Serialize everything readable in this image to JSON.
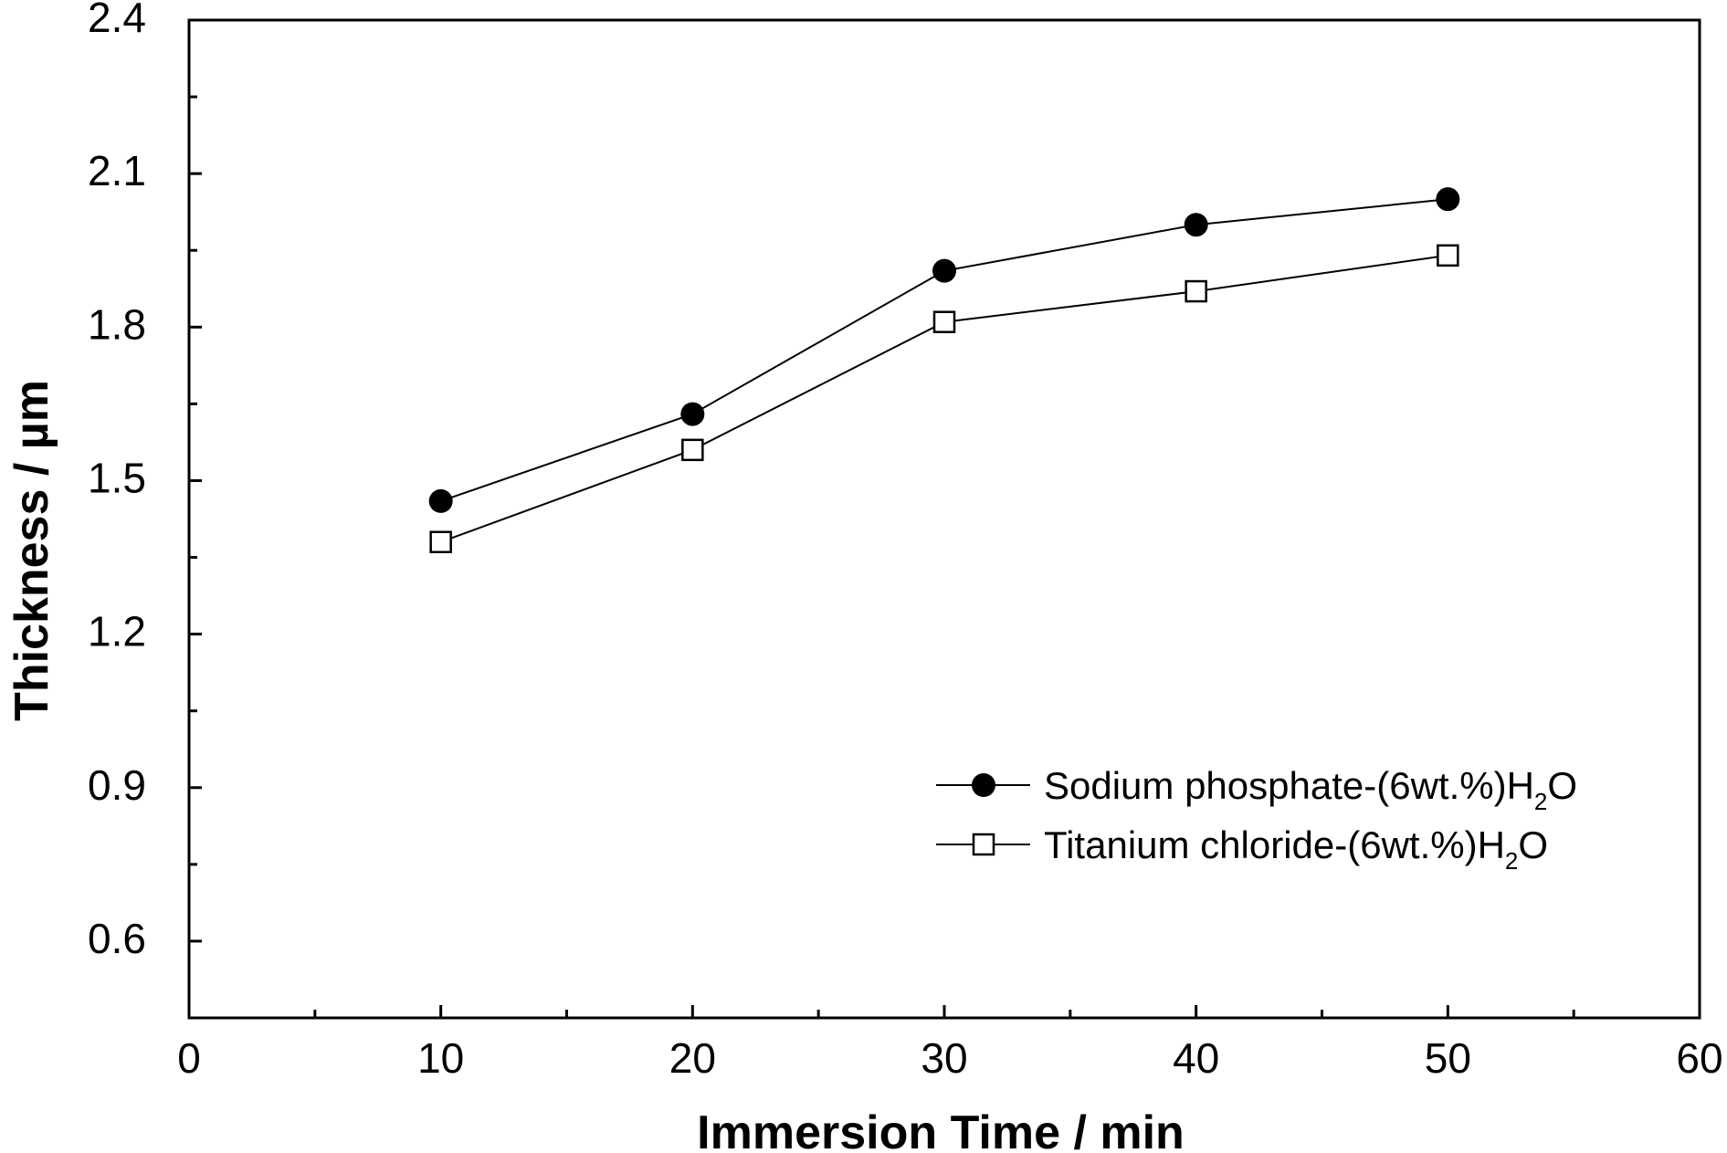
{
  "chart_data": {
    "type": "line",
    "xlabel": "Immersion Time / min",
    "ylabel": "Thickness / µm",
    "xlim": [
      0,
      60
    ],
    "ylim": [
      0.45,
      2.4
    ],
    "x_major_ticks": [
      0,
      10,
      20,
      30,
      40,
      50,
      60
    ],
    "x_tick_labels": [
      "0",
      "10",
      "20",
      "30",
      "40",
      "50",
      "60"
    ],
    "y_major_ticks": [
      0.6,
      0.9,
      1.2,
      1.5,
      1.8,
      2.1,
      2.4
    ],
    "y_tick_labels": [
      "0.6",
      "0.9",
      "1.2",
      "1.5",
      "1.8",
      "2.1",
      "2.4"
    ],
    "grid": false,
    "legend_position": "bottom-right",
    "x": [
      10,
      20,
      30,
      40,
      50
    ],
    "series": [
      {
        "name": "Sodium phosphate-(6wt.%)H2O",
        "legend_parts": [
          "Sodium phosphate-(6wt.%)H",
          "2",
          "O"
        ],
        "marker": "filled-circle",
        "values": [
          1.46,
          1.63,
          1.91,
          2.0,
          2.05
        ]
      },
      {
        "name": "Titanium chloride-(6wt.%)H2O",
        "legend_parts": [
          "Titanium chloride-(6wt.%)H",
          "2",
          "O"
        ],
        "marker": "open-square",
        "values": [
          1.38,
          1.56,
          1.81,
          1.87,
          1.94
        ]
      }
    ]
  }
}
